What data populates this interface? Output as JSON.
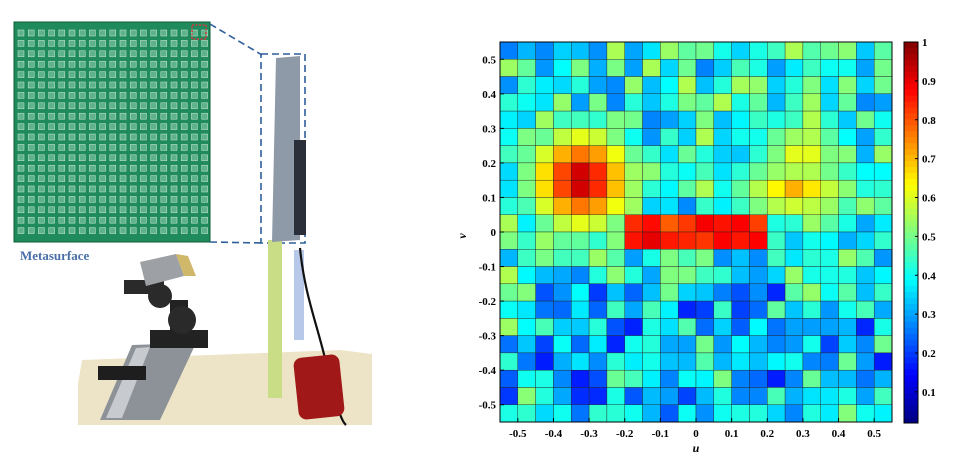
{
  "photo": {
    "inset_label": "Metasurface",
    "description_icon": "metasurface-photo"
  },
  "chart_data": {
    "type": "heatmap",
    "xlabel": "u",
    "ylabel": "v",
    "xlim": [
      -0.55,
      0.55
    ],
    "ylim": [
      -0.55,
      0.55
    ],
    "x_ticks": [
      "-0.5",
      "-0.4",
      "-0.3",
      "-0.2",
      "-0.1",
      "0",
      "0.1",
      "0.2",
      "0.3",
      "0.4",
      "0.5"
    ],
    "y_ticks": [
      "0.5",
      "0.4",
      "0.3",
      "0.2",
      "0.1",
      "0",
      "-0.1",
      "-0.2",
      "-0.3",
      "-0.4",
      "-0.5"
    ],
    "colorbar_ticks": [
      "1",
      "0.9",
      "0.8",
      "0.7",
      "0.6",
      "0.5",
      "0.4",
      "0.3",
      "0.2",
      "0.1"
    ],
    "colormap": "jet",
    "grid": true,
    "rows": 22,
    "cols": 22,
    "peaks": [
      {
        "u": -0.32,
        "v": 0.15,
        "value": 1.0
      },
      {
        "u": 0.0,
        "v": -0.01,
        "value": 0.9
      },
      {
        "u": 0.3,
        "v": 0.1,
        "value": 0.75
      }
    ]
  }
}
